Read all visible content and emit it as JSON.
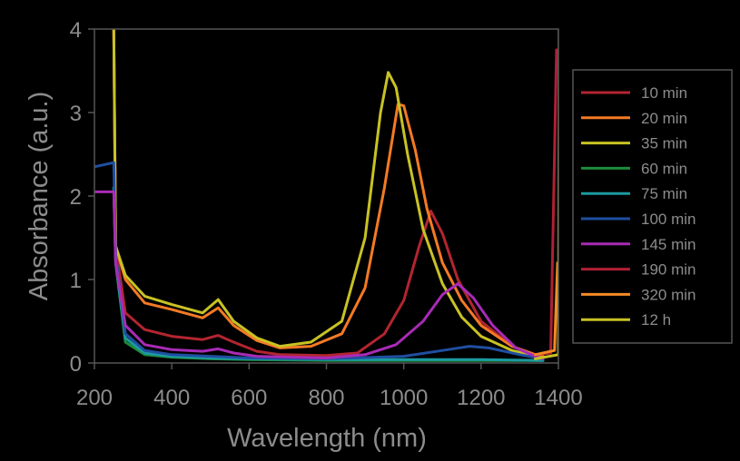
{
  "chart_data": {
    "type": "line",
    "title": "",
    "xlabel": "Wavelength (nm)",
    "ylabel": "Absorbance (a.u.)",
    "xlim": [
      200,
      1400
    ],
    "ylim": [
      0,
      4
    ],
    "xticks": [
      "200",
      "400",
      "600",
      "800",
      "1000",
      "1200",
      "1400"
    ],
    "yticks": [
      "0",
      "1",
      "2",
      "3",
      "4"
    ],
    "grid": false,
    "legend_position": "right",
    "series": [
      {
        "name": "10 min",
        "color": "#b22530",
        "points": [
          [
            250,
            4.0
          ],
          [
            255,
            1.4
          ],
          [
            280,
            0.6
          ],
          [
            330,
            0.4
          ],
          [
            400,
            0.32
          ],
          [
            480,
            0.28
          ],
          [
            520,
            0.33
          ],
          [
            560,
            0.25
          ],
          [
            620,
            0.14
          ],
          [
            680,
            0.1
          ],
          [
            800,
            0.09
          ],
          [
            880,
            0.12
          ],
          [
            950,
            0.35
          ],
          [
            1000,
            0.75
          ],
          [
            1040,
            1.4
          ],
          [
            1070,
            1.82
          ],
          [
            1100,
            1.55
          ],
          [
            1140,
            1.0
          ],
          [
            1200,
            0.5
          ],
          [
            1280,
            0.2
          ],
          [
            1340,
            0.1
          ],
          [
            1360,
            0.08
          ]
        ]
      },
      {
        "name": "20 min",
        "color": "#f47a24",
        "points": [
          [
            250,
            4.0
          ],
          [
            255,
            1.4
          ],
          [
            280,
            1.0
          ],
          [
            330,
            0.72
          ],
          [
            400,
            0.64
          ],
          [
            480,
            0.54
          ],
          [
            520,
            0.66
          ],
          [
            560,
            0.45
          ],
          [
            620,
            0.27
          ],
          [
            680,
            0.18
          ],
          [
            760,
            0.2
          ],
          [
            840,
            0.35
          ],
          [
            900,
            0.9
          ],
          [
            950,
            2.1
          ],
          [
            985,
            3.1
          ],
          [
            1000,
            3.08
          ],
          [
            1030,
            2.55
          ],
          [
            1060,
            1.85
          ],
          [
            1100,
            1.2
          ],
          [
            1150,
            0.75
          ],
          [
            1200,
            0.45
          ],
          [
            1280,
            0.2
          ],
          [
            1340,
            0.1
          ],
          [
            1360,
            0.08
          ]
        ]
      },
      {
        "name": "35 min",
        "color": "#c8c224",
        "points": [
          [
            250,
            4.0
          ],
          [
            255,
            1.4
          ],
          [
            280,
            1.05
          ],
          [
            330,
            0.8
          ],
          [
            400,
            0.7
          ],
          [
            480,
            0.6
          ],
          [
            520,
            0.76
          ],
          [
            560,
            0.5
          ],
          [
            620,
            0.3
          ],
          [
            680,
            0.2
          ],
          [
            760,
            0.25
          ],
          [
            840,
            0.5
          ],
          [
            900,
            1.5
          ],
          [
            940,
            3.0
          ],
          [
            960,
            3.48
          ],
          [
            980,
            3.3
          ],
          [
            1010,
            2.5
          ],
          [
            1050,
            1.6
          ],
          [
            1100,
            0.95
          ],
          [
            1150,
            0.55
          ],
          [
            1200,
            0.32
          ],
          [
            1280,
            0.15
          ],
          [
            1340,
            0.08
          ],
          [
            1360,
            0.06
          ]
        ]
      },
      {
        "name": "60 min",
        "color": "#1d8c3c",
        "points": [
          [
            250,
            2.1
          ],
          [
            255,
            1.2
          ],
          [
            280,
            0.25
          ],
          [
            330,
            0.1
          ],
          [
            400,
            0.07
          ],
          [
            500,
            0.05
          ],
          [
            600,
            0.04
          ],
          [
            800,
            0.03
          ],
          [
            1000,
            0.03
          ],
          [
            1200,
            0.03
          ],
          [
            1360,
            0.03
          ]
        ]
      },
      {
        "name": "75 min",
        "color": "#1c9aa0",
        "points": [
          [
            250,
            2.1
          ],
          [
            255,
            1.2
          ],
          [
            280,
            0.3
          ],
          [
            330,
            0.12
          ],
          [
            400,
            0.08
          ],
          [
            500,
            0.06
          ],
          [
            600,
            0.05
          ],
          [
            800,
            0.04
          ],
          [
            1000,
            0.04
          ],
          [
            1200,
            0.04
          ],
          [
            1360,
            0.03
          ]
        ]
      },
      {
        "name": "100 min",
        "color": "#1f4fa0",
        "points": [
          [
            200,
            2.35
          ],
          [
            250,
            2.4
          ],
          [
            255,
            1.3
          ],
          [
            280,
            0.35
          ],
          [
            330,
            0.15
          ],
          [
            400,
            0.1
          ],
          [
            500,
            0.08
          ],
          [
            600,
            0.06
          ],
          [
            800,
            0.05
          ],
          [
            1000,
            0.08
          ],
          [
            1100,
            0.15
          ],
          [
            1170,
            0.2
          ],
          [
            1220,
            0.18
          ],
          [
            1300,
            0.1
          ],
          [
            1360,
            0.05
          ]
        ]
      },
      {
        "name": "145 min",
        "color": "#a82bb5",
        "points": [
          [
            200,
            2.05
          ],
          [
            250,
            2.05
          ],
          [
            255,
            1.2
          ],
          [
            280,
            0.45
          ],
          [
            330,
            0.22
          ],
          [
            400,
            0.16
          ],
          [
            480,
            0.14
          ],
          [
            520,
            0.17
          ],
          [
            560,
            0.12
          ],
          [
            620,
            0.08
          ],
          [
            800,
            0.06
          ],
          [
            900,
            0.1
          ],
          [
            980,
            0.22
          ],
          [
            1050,
            0.5
          ],
          [
            1100,
            0.82
          ],
          [
            1140,
            0.95
          ],
          [
            1180,
            0.78
          ],
          [
            1230,
            0.45
          ],
          [
            1290,
            0.18
          ],
          [
            1340,
            0.08
          ],
          [
            1360,
            0.05
          ]
        ]
      },
      {
        "name": "190 min",
        "color": "#b02035",
        "points": [
          [
            1340,
            0.1
          ],
          [
            1380,
            0.12
          ],
          [
            1395,
            3.75
          ]
        ]
      },
      {
        "name": "320 min",
        "color": "#f48a24",
        "points": [
          [
            1340,
            0.1
          ],
          [
            1390,
            0.15
          ],
          [
            1398,
            1.2
          ]
        ]
      },
      {
        "name": "12 h",
        "color": "#c8c224",
        "points": [
          [
            1340,
            0.05
          ],
          [
            1400,
            0.1
          ],
          [
            1402,
            4.0
          ]
        ]
      }
    ]
  }
}
